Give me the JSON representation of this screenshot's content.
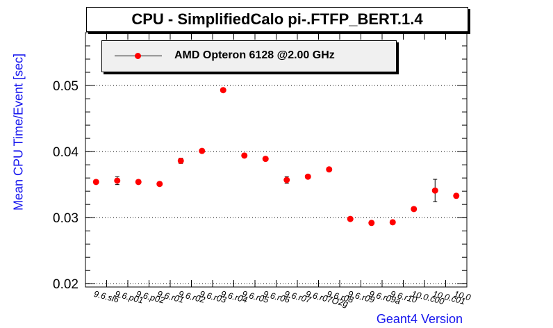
{
  "chart_data": {
    "type": "scatter",
    "title": "CPU - SimplifiedCalo pi-.FTFP_BERT.1.4",
    "xlabel": "Geant4 Version",
    "ylabel": "Mean CPU Time/Event [sec]",
    "ylim": [
      0.0195,
      0.058
    ],
    "yticks": [
      "0.02",
      "0.03",
      "0.04",
      "0.05"
    ],
    "grid": "horizontal-dotted",
    "legend_position": "top-left",
    "categories": [
      "9.6.sl6",
      "9.6.p01",
      "9.6.p02",
      "9.6.r01",
      "9.6.r02",
      "9.6.r03",
      "9.6.r04",
      "9.6.r05",
      "9.6.r06",
      "9.6.r07",
      "9.6.r07O2g",
      "9.6.r08",
      "9.6.r09",
      "9.6.r09a",
      "9.6.r10",
      "10.0.c00",
      "10.0.c01",
      "10.0"
    ],
    "series": [
      {
        "name": "AMD Opteron 6128 @2.00 GHz",
        "color": "#ff0000",
        "values": [
          0.0354,
          0.0356,
          0.0354,
          0.0351,
          0.0386,
          0.0401,
          0.0493,
          0.0394,
          0.0389,
          0.0357,
          0.0362,
          0.0373,
          0.0298,
          0.0292,
          0.0293,
          0.0313,
          0.0341,
          0.0333
        ],
        "errors": [
          0.0003,
          0.0006,
          0.0003,
          0.0003,
          0.0004,
          0.0003,
          0.0003,
          0.0003,
          0.0003,
          0.0005,
          0.0003,
          0.0003,
          0.0003,
          0.0003,
          0.0003,
          0.0003,
          0.0017,
          0.0003
        ]
      }
    ]
  }
}
